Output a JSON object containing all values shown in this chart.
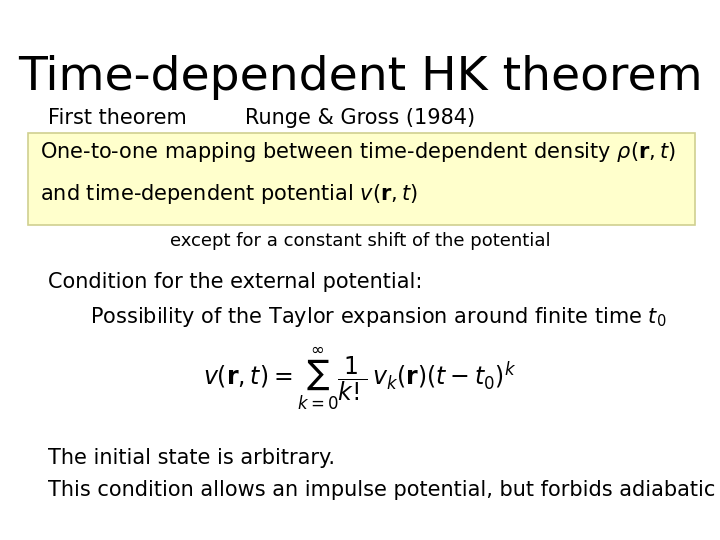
{
  "title": "Time-dependent HK theorem",
  "title_fontsize": 34,
  "background_color": "#ffffff",
  "first_theorem_label": "First theorem",
  "runge_gross_label": "Runge & Gross (1984)",
  "box_line1": "One-to-one mapping between time-dependent density ρ(​r,​t​)",
  "box_line1_math": "One-to-one mapping between time-dependent density $\\rho(\\mathbf{r},t)$",
  "box_line2_math": "and time-dependent potential $v(\\mathbf{r},t)$",
  "box_bg_color": "#ffffcc",
  "box_edge_color": "#d0d090",
  "except_text": "except for a constant shift of the potential",
  "condition_text": "Condition for the external potential:",
  "possibility_math": "Possibility of the Taylor expansion around finite time $t_0$",
  "formula_math": "$v(\\mathbf{r}, t) = \\sum_{k=0}^{\\infty} \\dfrac{1}{k!}\\, v_k(\\mathbf{r})\\left(t - t_0\\right)^k$",
  "initial_state_text": "The initial state is arbitrary.",
  "this_condition_text": "This condition allows an impulse potential, but forbids adiabatic switch-on.",
  "text_color": "#000000",
  "title_fs": 34,
  "body_fs": 15,
  "sub_fs": 13,
  "formula_fs": 17
}
